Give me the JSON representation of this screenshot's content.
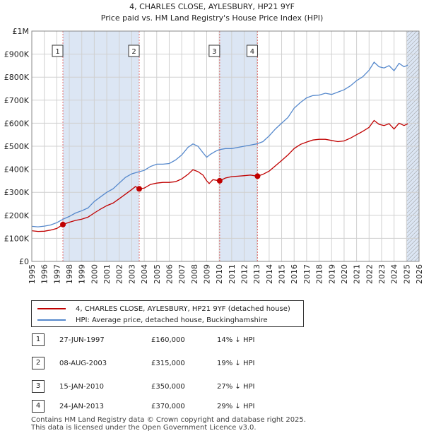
{
  "title": "4, CHARLES CLOSE, AYLESBURY, HP21 9YF",
  "subtitle": "Price paid vs. HM Land Registry's House Price Index (HPI)",
  "colors": {
    "price_line": "#c00000",
    "hpi_line": "#5588cc",
    "shade": "#dce6f4",
    "grid": "#d0d0d0",
    "marker_line": "#e07070"
  },
  "chart_data": {
    "type": "line",
    "title": "4, CHARLES CLOSE, AYLESBURY, HP21 9YF",
    "subtitle": "Price paid vs. HM Land Registry's House Price Index (HPI)",
    "xlim": [
      1995,
      2026
    ],
    "ylim": [
      0,
      1000000
    ],
    "x_ticks": [
      "1995",
      "1996",
      "1997",
      "1998",
      "1999",
      "2000",
      "2001",
      "2002",
      "2003",
      "2004",
      "2005",
      "2006",
      "2007",
      "2008",
      "2009",
      "2010",
      "2011",
      "2012",
      "2013",
      "2014",
      "2015",
      "2016",
      "2017",
      "2018",
      "2019",
      "2020",
      "2021",
      "2022",
      "2023",
      "2024",
      "2025",
      "2026"
    ],
    "y_ticks": [
      {
        "value": 0,
        "label": "£0"
      },
      {
        "value": 100000,
        "label": "£100K"
      },
      {
        "value": 200000,
        "label": "£200K"
      },
      {
        "value": 300000,
        "label": "£300K"
      },
      {
        "value": 400000,
        "label": "£400K"
      },
      {
        "value": 500000,
        "label": "£500K"
      },
      {
        "value": 600000,
        "label": "£600K"
      },
      {
        "value": 700000,
        "label": "£700K"
      },
      {
        "value": 800000,
        "label": "£800K"
      },
      {
        "value": 900000,
        "label": "£900K"
      },
      {
        "value": 1000000,
        "label": "£1M"
      }
    ],
    "shaded_ranges": [
      [
        1997.49,
        2003.6
      ],
      [
        2010.04,
        2013.07
      ],
      [
        2025.0,
        2026.0
      ]
    ],
    "hatched_range": [
      2025.0,
      2026.0
    ],
    "series": [
      {
        "name": "4, CHARLES CLOSE, AYLESBURY, HP21 9YF (detached house)",
        "points": [
          [
            1995.0,
            133000
          ],
          [
            1995.5,
            130000
          ],
          [
            1996.0,
            131000
          ],
          [
            1996.5,
            136000
          ],
          [
            1997.0,
            143000
          ],
          [
            1997.49,
            160000
          ],
          [
            1998.0,
            170000
          ],
          [
            1998.5,
            178000
          ],
          [
            1999.0,
            183000
          ],
          [
            1999.5,
            192000
          ],
          [
            2000.0,
            210000
          ],
          [
            2000.5,
            227000
          ],
          [
            2001.0,
            242000
          ],
          [
            2001.5,
            253000
          ],
          [
            2002.0,
            272000
          ],
          [
            2002.5,
            292000
          ],
          [
            2003.0,
            312000
          ],
          [
            2003.3,
            325000
          ],
          [
            2003.6,
            315000
          ],
          [
            2004.0,
            318000
          ],
          [
            2004.5,
            334000
          ],
          [
            2005.0,
            340000
          ],
          [
            2005.5,
            343000
          ],
          [
            2006.0,
            343000
          ],
          [
            2006.5,
            346000
          ],
          [
            2007.0,
            358000
          ],
          [
            2007.5,
            378000
          ],
          [
            2007.9,
            398000
          ],
          [
            2008.3,
            390000
          ],
          [
            2008.7,
            375000
          ],
          [
            2009.0,
            350000
          ],
          [
            2009.2,
            338000
          ],
          [
            2009.5,
            355000
          ],
          [
            2010.04,
            350000
          ],
          [
            2010.5,
            362000
          ],
          [
            2011.0,
            368000
          ],
          [
            2011.5,
            370000
          ],
          [
            2012.0,
            372000
          ],
          [
            2012.5,
            375000
          ],
          [
            2013.07,
            370000
          ],
          [
            2013.5,
            378000
          ],
          [
            2014.0,
            392000
          ],
          [
            2014.5,
            415000
          ],
          [
            2015.0,
            438000
          ],
          [
            2015.5,
            462000
          ],
          [
            2016.0,
            490000
          ],
          [
            2016.5,
            508000
          ],
          [
            2017.0,
            518000
          ],
          [
            2017.5,
            527000
          ],
          [
            2018.0,
            530000
          ],
          [
            2018.5,
            530000
          ],
          [
            2019.0,
            525000
          ],
          [
            2019.5,
            520000
          ],
          [
            2020.0,
            523000
          ],
          [
            2020.5,
            535000
          ],
          [
            2021.0,
            550000
          ],
          [
            2021.5,
            565000
          ],
          [
            2022.0,
            582000
          ],
          [
            2022.4,
            612000
          ],
          [
            2022.8,
            595000
          ],
          [
            2023.2,
            590000
          ],
          [
            2023.6,
            598000
          ],
          [
            2024.0,
            575000
          ],
          [
            2024.4,
            600000
          ],
          [
            2024.8,
            590000
          ],
          [
            2025.1,
            598000
          ]
        ]
      },
      {
        "name": "HPI: Average price, detached house, Buckinghamshire",
        "points": [
          [
            1995.0,
            152000
          ],
          [
            1995.5,
            150000
          ],
          [
            1996.0,
            153000
          ],
          [
            1996.5,
            158000
          ],
          [
            1997.0,
            168000
          ],
          [
            1997.5,
            183000
          ],
          [
            1998.0,
            195000
          ],
          [
            1998.5,
            210000
          ],
          [
            1999.0,
            220000
          ],
          [
            1999.5,
            232000
          ],
          [
            2000.0,
            260000
          ],
          [
            2000.5,
            280000
          ],
          [
            2001.0,
            300000
          ],
          [
            2001.5,
            315000
          ],
          [
            2002.0,
            340000
          ],
          [
            2002.5,
            365000
          ],
          [
            2003.0,
            380000
          ],
          [
            2003.5,
            388000
          ],
          [
            2004.0,
            395000
          ],
          [
            2004.5,
            412000
          ],
          [
            2005.0,
            422000
          ],
          [
            2005.5,
            422000
          ],
          [
            2006.0,
            425000
          ],
          [
            2006.5,
            440000
          ],
          [
            2007.0,
            462000
          ],
          [
            2007.5,
            495000
          ],
          [
            2007.9,
            510000
          ],
          [
            2008.3,
            500000
          ],
          [
            2008.7,
            472000
          ],
          [
            2009.0,
            452000
          ],
          [
            2009.3,
            465000
          ],
          [
            2009.7,
            478000
          ],
          [
            2010.0,
            485000
          ],
          [
            2010.5,
            490000
          ],
          [
            2011.0,
            490000
          ],
          [
            2011.5,
            495000
          ],
          [
            2012.0,
            500000
          ],
          [
            2012.5,
            505000
          ],
          [
            2013.0,
            510000
          ],
          [
            2013.5,
            520000
          ],
          [
            2014.0,
            545000
          ],
          [
            2014.5,
            575000
          ],
          [
            2015.0,
            600000
          ],
          [
            2015.5,
            625000
          ],
          [
            2016.0,
            665000
          ],
          [
            2016.5,
            690000
          ],
          [
            2017.0,
            710000
          ],
          [
            2017.5,
            720000
          ],
          [
            2018.0,
            722000
          ],
          [
            2018.5,
            730000
          ],
          [
            2019.0,
            725000
          ],
          [
            2019.5,
            735000
          ],
          [
            2020.0,
            745000
          ],
          [
            2020.5,
            762000
          ],
          [
            2021.0,
            785000
          ],
          [
            2021.5,
            802000
          ],
          [
            2022.0,
            830000
          ],
          [
            2022.4,
            865000
          ],
          [
            2022.8,
            845000
          ],
          [
            2023.2,
            840000
          ],
          [
            2023.6,
            850000
          ],
          [
            2024.0,
            828000
          ],
          [
            2024.4,
            860000
          ],
          [
            2024.8,
            845000
          ],
          [
            2025.1,
            852000
          ]
        ]
      }
    ],
    "transactions": [
      {
        "label": "1",
        "x": 1997.49,
        "price": 160000
      },
      {
        "label": "2",
        "x": 2003.6,
        "price": 315000
      },
      {
        "label": "3",
        "x": 2010.04,
        "price": 350000
      },
      {
        "label": "4",
        "x": 2013.07,
        "price": 370000
      }
    ]
  },
  "legend": {
    "items": [
      {
        "label": "4, CHARLES CLOSE, AYLESBURY, HP21 9YF (detached house)",
        "color": "#c00000"
      },
      {
        "label": "HPI: Average price, detached house, Buckinghamshire",
        "color": "#5588cc"
      }
    ]
  },
  "table": [
    {
      "num": "1",
      "date": "27-JUN-1997",
      "price": "£160,000",
      "hpi": "14% ↓ HPI"
    },
    {
      "num": "2",
      "date": "08-AUG-2003",
      "price": "£315,000",
      "hpi": "19% ↓ HPI"
    },
    {
      "num": "3",
      "date": "15-JAN-2010",
      "price": "£350,000",
      "hpi": "27% ↓ HPI"
    },
    {
      "num": "4",
      "date": "24-JAN-2013",
      "price": "£370,000",
      "hpi": "29% ↓ HPI"
    }
  ],
  "footer": {
    "line1": "Contains HM Land Registry data © Crown copyright and database right 2025.",
    "line2": "This data is licensed under the Open Government Licence v3.0."
  }
}
